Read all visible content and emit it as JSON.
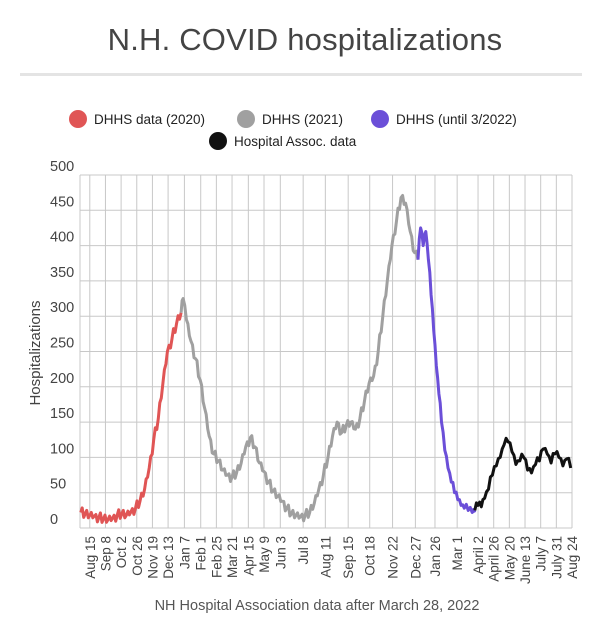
{
  "page_title": "N.H. COVID hospitalizations",
  "chart_data": {
    "type": "line",
    "title": "N.H. COVID hospitalizations",
    "xlabel": "NH Hospital Association data after March 28, 2022",
    "ylabel": "Hospitalizations",
    "ylim": [
      0,
      500
    ],
    "yticks": [
      0,
      50,
      100,
      150,
      200,
      250,
      300,
      350,
      400,
      450,
      500
    ],
    "xlim": [
      "2020-07-31",
      "2022-08-24"
    ],
    "xticks": [
      {
        "date": "2020-08-15",
        "label": "Aug 15"
      },
      {
        "date": "2020-09-08",
        "label": "Sep 8"
      },
      {
        "date": "2020-10-02",
        "label": "Oct 2"
      },
      {
        "date": "2020-10-26",
        "label": "Oct 26"
      },
      {
        "date": "2020-11-19",
        "label": "Nov 19"
      },
      {
        "date": "2020-12-13",
        "label": "Dec 13"
      },
      {
        "date": "2021-01-07",
        "label": "Jan 7"
      },
      {
        "date": "2021-02-01",
        "label": "Feb 1"
      },
      {
        "date": "2021-02-25",
        "label": "Feb 25"
      },
      {
        "date": "2021-03-21",
        "label": "Mar 21"
      },
      {
        "date": "2021-04-15",
        "label": "Apr 15"
      },
      {
        "date": "2021-05-09",
        "label": "May 9"
      },
      {
        "date": "2021-06-03",
        "label": "Jun 3"
      },
      {
        "date": "2021-07-08",
        "label": "Jul 8"
      },
      {
        "date": "2021-08-11",
        "label": "Aug 11"
      },
      {
        "date": "2021-09-15",
        "label": "Sep 15"
      },
      {
        "date": "2021-10-18",
        "label": "Oct 18"
      },
      {
        "date": "2021-11-22",
        "label": "Nov 22"
      },
      {
        "date": "2021-12-27",
        "label": "Dec 27"
      },
      {
        "date": "2022-01-26",
        "label": "Jan 26"
      },
      {
        "date": "2022-03-01",
        "label": "Mar 1"
      },
      {
        "date": "2022-04-02",
        "label": "April 2"
      },
      {
        "date": "2022-04-26",
        "label": "April 26"
      },
      {
        "date": "2022-05-20",
        "label": "May 20"
      },
      {
        "date": "2022-06-13",
        "label": "June 13"
      },
      {
        "date": "2022-07-07",
        "label": "July 7"
      },
      {
        "date": "2022-07-31",
        "label": "July 31"
      },
      {
        "date": "2022-08-24",
        "label": "Aug 24"
      }
    ],
    "legend_position": "top",
    "series": [
      {
        "name": "DHHS data (2020)",
        "color": "#e05555",
        "points": [
          [
            "2020-08-01",
            22
          ],
          [
            "2020-08-08",
            20
          ],
          [
            "2020-08-15",
            18
          ],
          [
            "2020-08-22",
            17
          ],
          [
            "2020-08-29",
            15
          ],
          [
            "2020-09-05",
            13
          ],
          [
            "2020-09-12",
            12
          ],
          [
            "2020-09-19",
            14
          ],
          [
            "2020-09-26",
            18
          ],
          [
            "2020-10-03",
            20
          ],
          [
            "2020-10-10",
            18
          ],
          [
            "2020-10-17",
            23
          ],
          [
            "2020-10-24",
            28
          ],
          [
            "2020-10-31",
            38
          ],
          [
            "2020-11-07",
            55
          ],
          [
            "2020-11-14",
            85
          ],
          [
            "2020-11-21",
            125
          ],
          [
            "2020-11-28",
            155
          ],
          [
            "2020-12-05",
            205
          ],
          [
            "2020-12-12",
            250
          ],
          [
            "2020-12-19",
            268
          ],
          [
            "2020-12-26",
            290
          ],
          [
            "2021-01-02",
            305
          ]
        ]
      },
      {
        "name": "DHHS (2021)",
        "color": "#a0a0a0",
        "points": [
          [
            "2021-01-02",
            305
          ],
          [
            "2021-01-05",
            325
          ],
          [
            "2021-01-10",
            295
          ],
          [
            "2021-01-17",
            265
          ],
          [
            "2021-01-24",
            240
          ],
          [
            "2021-01-31",
            210
          ],
          [
            "2021-02-07",
            170
          ],
          [
            "2021-02-14",
            130
          ],
          [
            "2021-02-21",
            105
          ],
          [
            "2021-02-28",
            95
          ],
          [
            "2021-03-07",
            82
          ],
          [
            "2021-03-14",
            75
          ],
          [
            "2021-03-21",
            72
          ],
          [
            "2021-03-28",
            78
          ],
          [
            "2021-04-04",
            92
          ],
          [
            "2021-04-11",
            115
          ],
          [
            "2021-04-18",
            128
          ],
          [
            "2021-04-25",
            115
          ],
          [
            "2021-05-02",
            92
          ],
          [
            "2021-05-09",
            80
          ],
          [
            "2021-05-16",
            65
          ],
          [
            "2021-05-23",
            52
          ],
          [
            "2021-05-30",
            45
          ],
          [
            "2021-06-06",
            38
          ],
          [
            "2021-06-13",
            28
          ],
          [
            "2021-06-20",
            20
          ],
          [
            "2021-06-27",
            18
          ],
          [
            "2021-07-04",
            16
          ],
          [
            "2021-07-11",
            18
          ],
          [
            "2021-07-18",
            22
          ],
          [
            "2021-07-25",
            35
          ],
          [
            "2021-08-01",
            55
          ],
          [
            "2021-08-08",
            75
          ],
          [
            "2021-08-15",
            100
          ],
          [
            "2021-08-22",
            130
          ],
          [
            "2021-08-29",
            150
          ],
          [
            "2021-09-05",
            135
          ],
          [
            "2021-09-12",
            145
          ],
          [
            "2021-09-19",
            150
          ],
          [
            "2021-09-26",
            140
          ],
          [
            "2021-10-03",
            155
          ],
          [
            "2021-10-10",
            180
          ],
          [
            "2021-10-17",
            205
          ],
          [
            "2021-10-24",
            215
          ],
          [
            "2021-10-31",
            250
          ],
          [
            "2021-11-07",
            300
          ],
          [
            "2021-11-14",
            350
          ],
          [
            "2021-11-21",
            400
          ],
          [
            "2021-11-28",
            435
          ],
          [
            "2021-12-05",
            468
          ],
          [
            "2021-12-12",
            460
          ],
          [
            "2021-12-19",
            420
          ],
          [
            "2021-12-26",
            390
          ],
          [
            "2021-12-31",
            380
          ]
        ]
      },
      {
        "name": "DHHS (until 3/2022)",
        "color": "#6b4fd8",
        "points": [
          [
            "2021-12-31",
            380
          ],
          [
            "2022-01-04",
            425
          ],
          [
            "2022-01-08",
            400
          ],
          [
            "2022-01-12",
            420
          ],
          [
            "2022-01-16",
            380
          ],
          [
            "2022-01-20",
            330
          ],
          [
            "2022-01-24",
            280
          ],
          [
            "2022-01-28",
            230
          ],
          [
            "2022-02-01",
            190
          ],
          [
            "2022-02-05",
            150
          ],
          [
            "2022-02-10",
            110
          ],
          [
            "2022-02-15",
            85
          ],
          [
            "2022-02-20",
            65
          ],
          [
            "2022-02-25",
            50
          ],
          [
            "2022-03-02",
            40
          ],
          [
            "2022-03-07",
            32
          ],
          [
            "2022-03-12",
            28
          ],
          [
            "2022-03-18",
            25
          ],
          [
            "2022-03-24",
            22
          ],
          [
            "2022-03-28",
            22
          ]
        ]
      },
      {
        "name": "Hospital Assoc. data",
        "color": "#111111",
        "points": [
          [
            "2022-03-28",
            25
          ],
          [
            "2022-04-02",
            32
          ],
          [
            "2022-04-07",
            30
          ],
          [
            "2022-04-12",
            42
          ],
          [
            "2022-04-18",
            55
          ],
          [
            "2022-04-24",
            75
          ],
          [
            "2022-04-30",
            88
          ],
          [
            "2022-05-06",
            100
          ],
          [
            "2022-05-12",
            118
          ],
          [
            "2022-05-18",
            122
          ],
          [
            "2022-05-24",
            108
          ],
          [
            "2022-05-30",
            90
          ],
          [
            "2022-06-05",
            95
          ],
          [
            "2022-06-11",
            100
          ],
          [
            "2022-06-17",
            82
          ],
          [
            "2022-06-23",
            78
          ],
          [
            "2022-06-29",
            90
          ],
          [
            "2022-07-05",
            95
          ],
          [
            "2022-07-11",
            112
          ],
          [
            "2022-07-17",
            105
          ],
          [
            "2022-07-23",
            92
          ],
          [
            "2022-07-29",
            105
          ],
          [
            "2022-08-04",
            100
          ],
          [
            "2022-08-10",
            88
          ],
          [
            "2022-08-16",
            98
          ],
          [
            "2022-08-22",
            85
          ]
        ]
      }
    ]
  }
}
